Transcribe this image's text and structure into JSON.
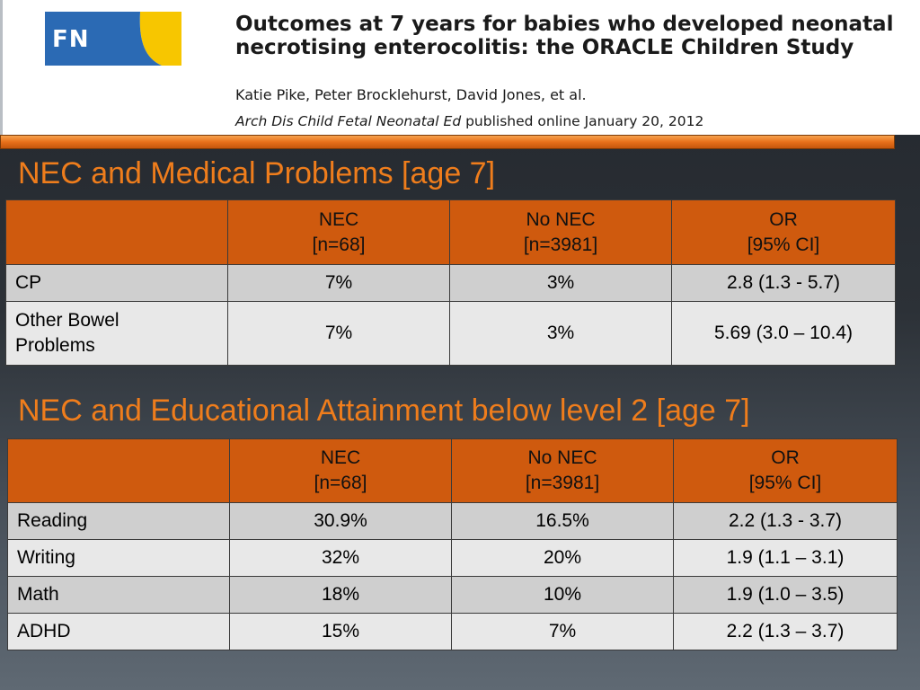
{
  "header": {
    "logo_text": "FN",
    "article_title": "Outcomes at 7 years for babies who developed neonatal necrotising enterocolitis: the ORACLE Children Study",
    "authors": "Katie Pike, Peter Brocklehurst, David Jones, et al.",
    "journal": "Arch Dis Child Fetal Neonatal Ed",
    "published": "published online January 20, 2012"
  },
  "colors": {
    "accent_orange": "#ef7d1c",
    "table_header": "#cf5a0e",
    "row_dark": "#cfcfcf",
    "row_light": "#e8e8e8",
    "logo_blue": "#2b6ab4",
    "logo_yellow": "#f7c600"
  },
  "table1": {
    "title": "NEC and Medical Problems [age 7]",
    "headers": [
      {
        "line1": "",
        "line2": ""
      },
      {
        "line1": "NEC",
        "line2": "[n=68]"
      },
      {
        "line1": "No NEC",
        "line2": "[n=3981]"
      },
      {
        "line1": "OR",
        "line2": "[95% CI]"
      }
    ],
    "rows": [
      {
        "label": "CP",
        "nec": "7%",
        "no_nec": "3%",
        "or": "2.8 (1.3 - 5.7)"
      },
      {
        "label": "Other Bowel Problems",
        "nec": "7%",
        "no_nec": "3%",
        "or": "5.69 (3.0 – 10.4)"
      }
    ]
  },
  "table2": {
    "title": "NEC and Educational Attainment below level 2 [age 7]",
    "headers": [
      {
        "line1": "",
        "line2": ""
      },
      {
        "line1": "NEC",
        "line2": "[n=68]"
      },
      {
        "line1": "No NEC",
        "line2": "[n=3981]"
      },
      {
        "line1": "OR",
        "line2": "[95% CI]"
      }
    ],
    "rows": [
      {
        "label": "Reading",
        "nec": "30.9%",
        "no_nec": "16.5%",
        "or": "2.2 (1.3 - 3.7)"
      },
      {
        "label": "Writing",
        "nec": "32%",
        "no_nec": "20%",
        "or": "1.9 (1.1 – 3.1)"
      },
      {
        "label": "Math",
        "nec": "18%",
        "no_nec": "10%",
        "or": "1.9 (1.0 – 3.5)"
      },
      {
        "label": "ADHD",
        "nec": "15%",
        "no_nec": "7%",
        "or": "2.2 (1.3 – 3.7)"
      }
    ]
  }
}
